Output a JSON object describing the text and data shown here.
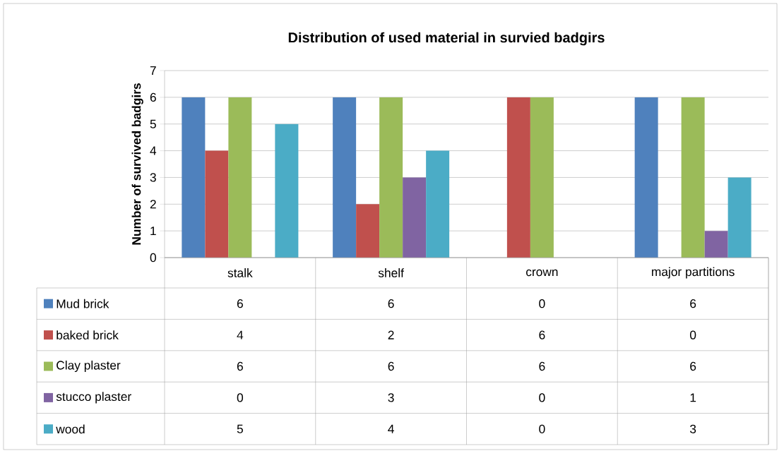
{
  "chart_data": {
    "type": "bar",
    "title": "Distribution of used material in survied badgirs",
    "ylabel": "Number of survived badgirs",
    "categories": [
      "stalk",
      "shelf",
      "crown",
      "major partitions"
    ],
    "series": [
      {
        "name": "Mud brick",
        "color": "#4f81bd",
        "values": [
          6,
          6,
          0,
          6
        ]
      },
      {
        "name": "baked brick",
        "color": "#c0504d",
        "values": [
          4,
          2,
          6,
          0
        ]
      },
      {
        "name": "Clay plaster",
        "color": "#9bbb59",
        "values": [
          6,
          6,
          6,
          6
        ]
      },
      {
        "name": "stucco plaster",
        "color": "#8064a2",
        "values": [
          0,
          3,
          0,
          1
        ]
      },
      {
        "name": "wood",
        "color": "#4bacc6",
        "values": [
          5,
          4,
          0,
          3
        ]
      }
    ],
    "ylim": [
      0,
      7
    ],
    "yticks": [
      0,
      1,
      2,
      3,
      4,
      5,
      6,
      7
    ],
    "grid": "y",
    "legend": "bottom",
    "data_labels": true
  }
}
